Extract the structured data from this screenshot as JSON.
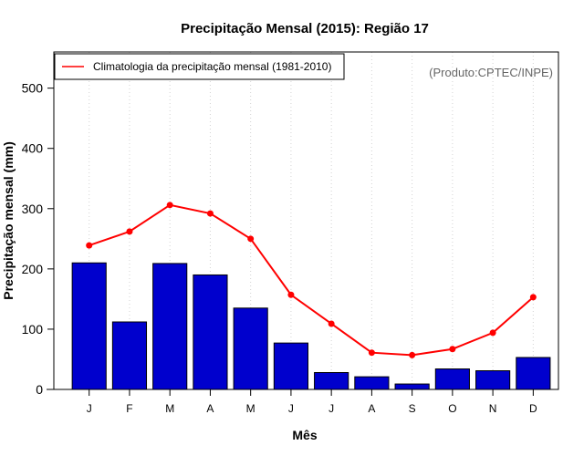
{
  "chart_data": {
    "type": "bar",
    "title": "Precipitação Mensal (2015): Região 17",
    "xlabel": "Mês",
    "ylabel": "Precipitação mensal (mm)",
    "ylim": [
      0,
      560
    ],
    "yticks": [
      0,
      100,
      200,
      300,
      400,
      500
    ],
    "categories": [
      "J",
      "F",
      "M",
      "A",
      "M",
      "J",
      "J",
      "A",
      "S",
      "O",
      "N",
      "D"
    ],
    "series": [
      {
        "name": "Precipitação mensal 2015",
        "kind": "bar",
        "color": "#0000CD",
        "values": [
          210,
          112,
          209,
          190,
          135,
          77,
          28,
          21,
          9,
          34,
          31,
          53
        ]
      },
      {
        "name": "Climatologia da precipitação mensal (1981-2010)",
        "kind": "line",
        "color": "#FF0000",
        "values": [
          239,
          262,
          306,
          292,
          250,
          157,
          109,
          61,
          57,
          67,
          94,
          153
        ]
      }
    ],
    "legend": {
      "label": "Climatologia da precipitação mensal (1981-2010)",
      "position": "top-left"
    },
    "annotation": "(Produto:CPTEC/INPE)",
    "grid": "vertical dotted"
  }
}
